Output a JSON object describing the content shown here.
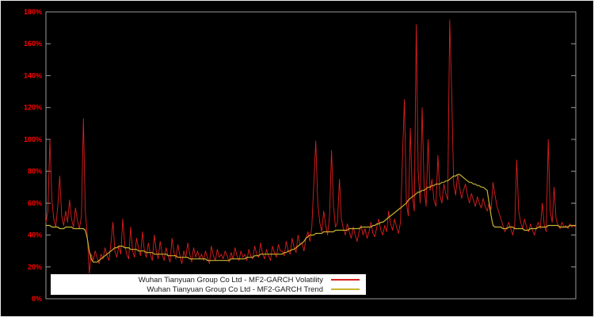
{
  "figure": {
    "background": "#000000",
    "border_color": "#e9e9e9",
    "plot_border_color": "#9a9a9a"
  },
  "chart_data": {
    "type": "line",
    "title": "",
    "xlabel": "",
    "ylabel": "",
    "ylim": [
      0,
      180
    ],
    "grid": false,
    "legend_position": "bottom-left",
    "axis_label_color": "#ff0000",
    "ytick_labels": [
      "0%",
      "20%",
      "40%",
      "60%",
      "80%",
      "100%",
      "120%",
      "140%",
      "160%",
      "180%"
    ],
    "ytick_values": [
      0,
      20,
      40,
      60,
      80,
      100,
      120,
      140,
      160,
      180
    ],
    "series": [
      {
        "name": "Wuhan Tianyuan Group Co Ltd - MF2-GARCH Volatility",
        "color": "#dd1e1e",
        "values": [
          48,
          55,
          100,
          62,
          50,
          45,
          58,
          77,
          52,
          46,
          55,
          48,
          62,
          50,
          45,
          57,
          49,
          44,
          52,
          113,
          55,
          40,
          16,
          28,
          24,
          30,
          26,
          22,
          28,
          25,
          32,
          27,
          24,
          35,
          48,
          30,
          26,
          33,
          28,
          50,
          34,
          28,
          25,
          45,
          30,
          26,
          38,
          32,
          27,
          42,
          30,
          26,
          35,
          28,
          24,
          40,
          30,
          25,
          36,
          28,
          24,
          32,
          27,
          23,
          38,
          29,
          25,
          34,
          27,
          22,
          30,
          26,
          35,
          28,
          23,
          32,
          26,
          30,
          25,
          28,
          24,
          30,
          26,
          22,
          33,
          27,
          24,
          31,
          26,
          28,
          25,
          30,
          27,
          23,
          29,
          25,
          32,
          27,
          24,
          30,
          26,
          28,
          24,
          31,
          27,
          25,
          33,
          28,
          26,
          35,
          28,
          25,
          31,
          27,
          24,
          33,
          29,
          26,
          34,
          30,
          30,
          27,
          36,
          30,
          28,
          38,
          32,
          29,
          40,
          34,
          35,
          30,
          38,
          42,
          36,
          45,
          72,
          99,
          60,
          48,
          42,
          55,
          46,
          40,
          52,
          93,
          58,
          45,
          48,
          75,
          50,
          44,
          40,
          47,
          42,
          38,
          45,
          40,
          36,
          42,
          46,
          40,
          44,
          38,
          42,
          48,
          41,
          39,
          45,
          50,
          43,
          40,
          46,
          42,
          55,
          47,
          43,
          50,
          45,
          41,
          48,
          88,
          125,
          60,
          52,
          107,
          65,
          55,
          172,
          80,
          60,
          120,
          70,
          58,
          100,
          68,
          75,
          62,
          58,
          90,
          65,
          60,
          72,
          66,
          62,
          175,
          130,
          72,
          65,
          78,
          70,
          63,
          68,
          72,
          65,
          60,
          66,
          62,
          58,
          64,
          60,
          57,
          63,
          58,
          55,
          60,
          56,
          73,
          65,
          58,
          54,
          50,
          46,
          42,
          45,
          48,
          44,
          40,
          46,
          87,
          55,
          48,
          44,
          50,
          45,
          42,
          47,
          43,
          40,
          45,
          48,
          44,
          60,
          46,
          42,
          100,
          55,
          48,
          70,
          50,
          46,
          44,
          48,
          45,
          46,
          44,
          47,
          45,
          46,
          45
        ]
      },
      {
        "name": "Wuhan Tianyuan Group Co Ltd - MF2-GARCH Trend",
        "color": "#c6b42e",
        "values": [
          46,
          46,
          46,
          45,
          45,
          45,
          45,
          44,
          44,
          44,
          45,
          45,
          45,
          45,
          44,
          44,
          44,
          44,
          44,
          44,
          43,
          38,
          30,
          25,
          23,
          23,
          23,
          24,
          25,
          26,
          27,
          28,
          29,
          30,
          31,
          32,
          32,
          33,
          33,
          33,
          32,
          32,
          32,
          31,
          31,
          31,
          31,
          30,
          30,
          30,
          30,
          29,
          29,
          29,
          29,
          28,
          28,
          28,
          28,
          28,
          28,
          28,
          27,
          27,
          27,
          27,
          27,
          26,
          26,
          26,
          26,
          26,
          26,
          25,
          25,
          25,
          25,
          25,
          25,
          25,
          25,
          25,
          24,
          24,
          24,
          24,
          24,
          24,
          24,
          24,
          24,
          24,
          24,
          24,
          25,
          25,
          25,
          25,
          25,
          25,
          25,
          25,
          26,
          26,
          26,
          26,
          27,
          27,
          27,
          28,
          28,
          28,
          28,
          28,
          28,
          28,
          28,
          28,
          28,
          28,
          28,
          29,
          29,
          30,
          30,
          31,
          31,
          32,
          33,
          34,
          35,
          36,
          38,
          39,
          40,
          40,
          40,
          41,
          41,
          41,
          41,
          42,
          42,
          42,
          42,
          42,
          42,
          43,
          43,
          43,
          43,
          43,
          43,
          43,
          44,
          44,
          44,
          44,
          44,
          44,
          45,
          45,
          45,
          45,
          45,
          45,
          46,
          46,
          47,
          47,
          48,
          48,
          49,
          50,
          51,
          52,
          53,
          54,
          55,
          56,
          57,
          58,
          59,
          60,
          62,
          63,
          64,
          65,
          66,
          67,
          67,
          68,
          68,
          69,
          70,
          70,
          71,
          71,
          72,
          72,
          72,
          73,
          73,
          74,
          74,
          75,
          76,
          77,
          77,
          78,
          78,
          77,
          76,
          75,
          74,
          73,
          73,
          72,
          72,
          71,
          71,
          70,
          70,
          69,
          68,
          60,
          52,
          46,
          45,
          45,
          45,
          45,
          44,
          44,
          44,
          45,
          45,
          45,
          44,
          44,
          44,
          44,
          44,
          43,
          43,
          43,
          44,
          44,
          44,
          44,
          45,
          45,
          45,
          45,
          45,
          46,
          46,
          46,
          46,
          46,
          46,
          45,
          45,
          45,
          45,
          45,
          46,
          46,
          46,
          46
        ]
      }
    ]
  }
}
